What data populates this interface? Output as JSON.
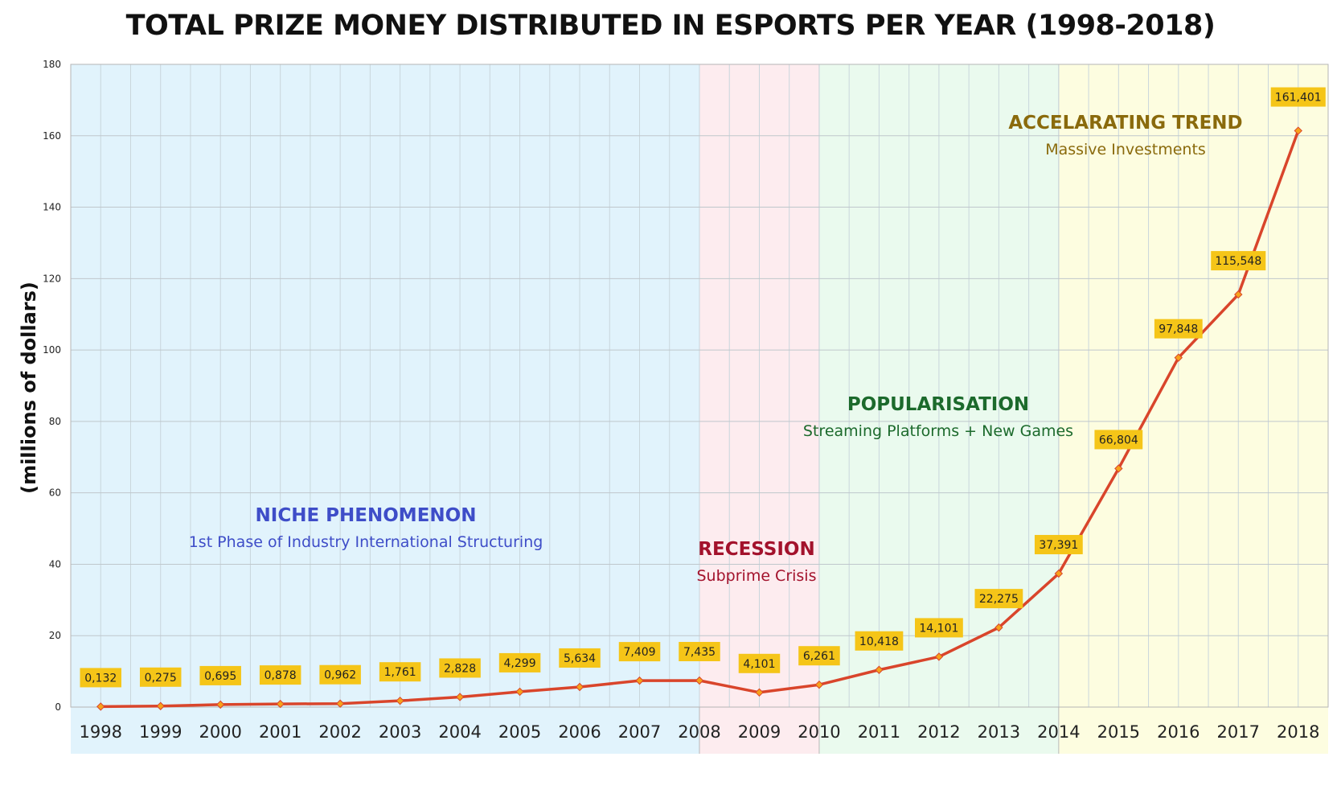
{
  "chart_data": {
    "type": "line",
    "title": "TOTAL PRIZE MONEY DISTRIBUTED IN ESPORTS PER YEAR (1998-2018)",
    "xlabel": "",
    "ylabel": "(millions of dollars)",
    "ylim": [
      0,
      180
    ],
    "yticks": [
      0,
      20,
      40,
      60,
      80,
      100,
      120,
      140,
      160,
      180
    ],
    "grid": true,
    "legend": "none",
    "categories": [
      "1998",
      "1999",
      "2000",
      "2001",
      "2002",
      "2003",
      "2004",
      "2005",
      "2006",
      "2007",
      "2008",
      "2009",
      "2010",
      "2011",
      "2012",
      "2013",
      "2014",
      "2015",
      "2016",
      "2017",
      "2018"
    ],
    "series": [
      {
        "values": [
          0.132,
          0.275,
          0.695,
          0.878,
          0.962,
          1.761,
          2.828,
          4.299,
          5.634,
          7.409,
          7.435,
          4.101,
          6.261,
          10.418,
          14.101,
          22.275,
          37.391,
          66.804,
          97.848,
          115.548,
          161.401
        ],
        "labels": [
          "0,132",
          "0,275",
          "0,695",
          "0,878",
          "0,962",
          "1,761",
          "2,828",
          "4,299",
          "5,634",
          "7,409",
          "7,435",
          "4,101",
          "6,261",
          "10,418",
          "14,101",
          "22,275",
          "37,391",
          "66,804",
          "97,848",
          "115,548",
          "161,401"
        ],
        "color": "#d9452b"
      }
    ],
    "phases": [
      {
        "start": "1998",
        "end": "2008",
        "title": "NICHE PHENOMENON",
        "subtitle": "1st Phase of Industry International Structuring",
        "bg": "#e1f3fc",
        "color": "#3e4dc8"
      },
      {
        "start": "2008",
        "end": "2010",
        "title": "RECESSION",
        "subtitle": "Subprime Crisis",
        "bg": "#fdecef",
        "color": "#a3122c"
      },
      {
        "start": "2010",
        "end": "2014",
        "title": "POPULARISATION",
        "subtitle": "Streaming Platforms + New Games",
        "bg": "#eafaee",
        "color": "#1c6a2c"
      },
      {
        "start": "2014",
        "end": "2018",
        "title": "ACCELARATING TREND",
        "subtitle": "Massive Investments",
        "bg": "#fdfde0",
        "color": "#8a6a0c"
      }
    ],
    "label_box_color": "#f5c518",
    "marker_color": "#f7a21b"
  }
}
